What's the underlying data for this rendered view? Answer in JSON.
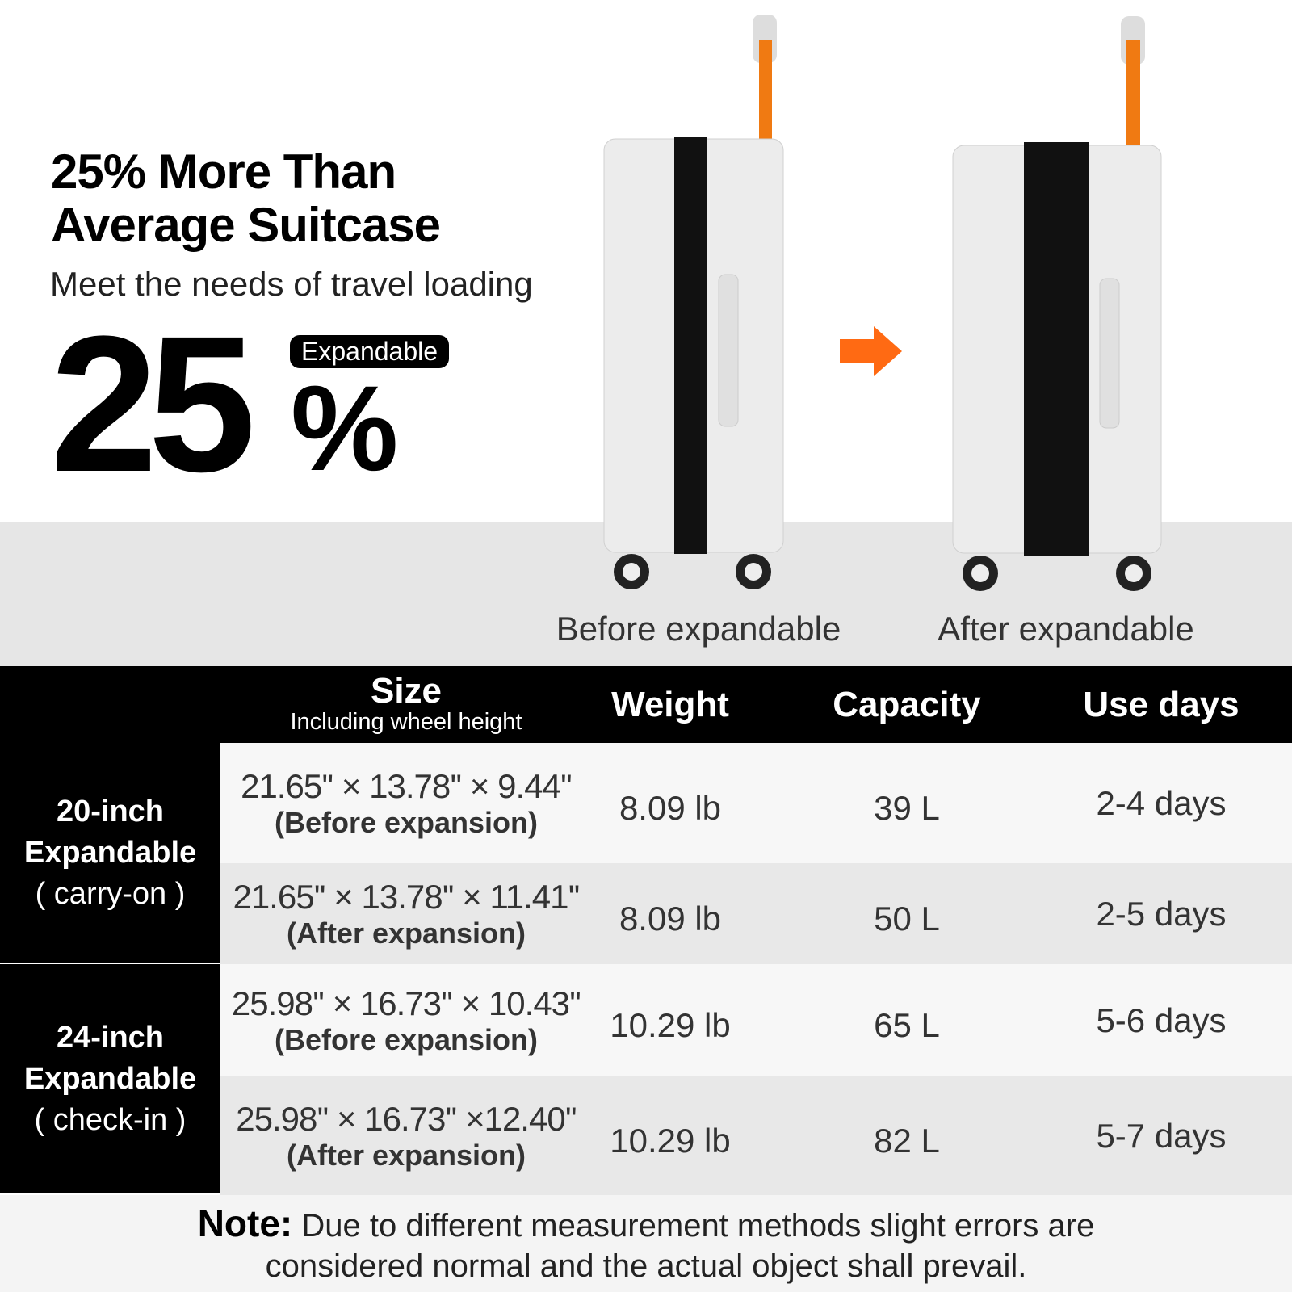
{
  "header": {
    "title": [
      "25% More Than",
      "Average Suitcase"
    ],
    "subtitle": "Meet the needs of travel loading",
    "big_number": "25",
    "percent_sign": "%",
    "badge": "Expandable"
  },
  "images": {
    "before_label": "Before expandable",
    "after_label": "After expandable"
  },
  "table": {
    "columns": {
      "size": "Size",
      "size_note": "Including wheel height",
      "weight": "Weight",
      "capacity": "Capacity",
      "days": "Use days"
    },
    "groups": [
      {
        "label": [
          "20-inch",
          "Expandable",
          "( carry-on )"
        ],
        "rows": [
          {
            "size": "21.65'' × 13.78'' × 9.44''",
            "state": "(Before expansion)",
            "weight": "8.09 lb",
            "capacity": "39 L",
            "days": "2-4 days"
          },
          {
            "size": "21.65'' × 13.78'' × 11.41''",
            "state": "(After expansion)",
            "weight": "8.09 lb",
            "capacity": "50 L",
            "days": "2-5 days"
          }
        ]
      },
      {
        "label": [
          "24-inch",
          "Expandable",
          "( check-in )"
        ],
        "rows": [
          {
            "size": "25.98'' × 16.73'' × 10.43''",
            "state": "(Before expansion)",
            "weight": "10.29 lb",
            "capacity": "65 L",
            "days": "5-6 days"
          },
          {
            "size": "25.98'' × 16.73'' ×12.40''",
            "state": "(After expansion)",
            "weight": "10.29 lb",
            "capacity": "82 L",
            "days": "5-7 days"
          }
        ]
      }
    ]
  },
  "note": {
    "label": "Note:",
    "text": [
      "Due to different measurement methods slight errors are",
      "considered normal and the actual object shall prevail."
    ]
  }
}
